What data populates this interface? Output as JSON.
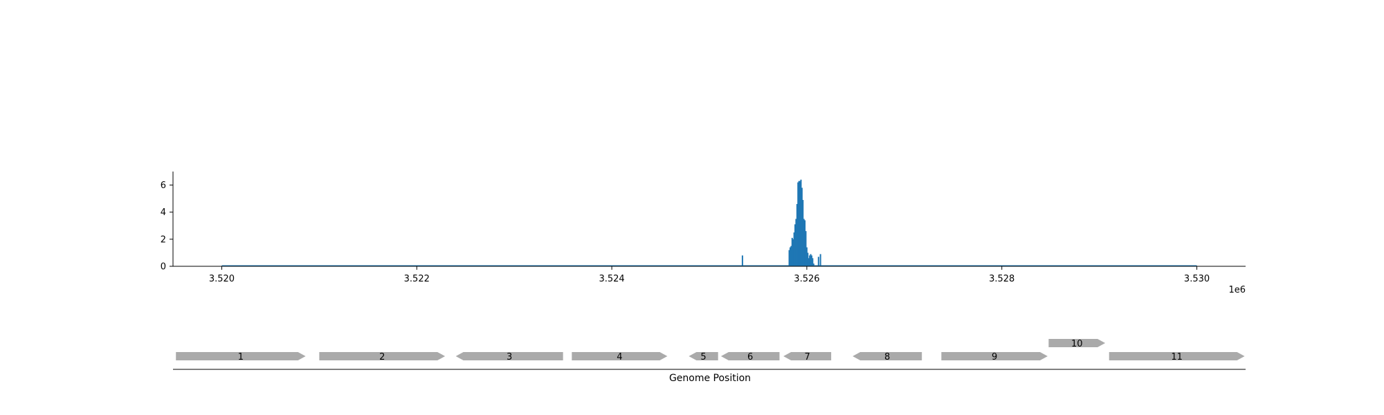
{
  "chart_data": [
    {
      "type": "bar",
      "title": "",
      "xlabel": "",
      "ylabel": "",
      "x_offset_label": "1e6",
      "xlim": [
        3519500,
        3530500
      ],
      "ylim": [
        0,
        7
      ],
      "x_ticks": [
        3520000,
        3522000,
        3524000,
        3526000,
        3528000,
        3530000
      ],
      "x_tick_labels": [
        "3.520",
        "3.522",
        "3.524",
        "3.526",
        "3.528",
        "3.530"
      ],
      "y_ticks": [
        0,
        2,
        4,
        6
      ],
      "y_tick_labels": [
        "0",
        "2",
        "4",
        "6"
      ],
      "color": "#1f77b4",
      "baseline_range": [
        3520000,
        3530000
      ],
      "grid": false,
      "series": [
        {
          "x": [
            3525340,
            3525820,
            3525830,
            3525840,
            3525850,
            3525860,
            3525870,
            3525880,
            3525890,
            3525900,
            3525910,
            3525920,
            3525930,
            3525940,
            3525950,
            3525960,
            3525970,
            3525980,
            3525990,
            3526000,
            3526010,
            3526020,
            3526030,
            3526040,
            3526050,
            3526060,
            3526070,
            3526120,
            3526140
          ],
          "values": [
            0.8,
            1.2,
            1.4,
            1.5,
            2.1,
            2.0,
            2.5,
            3.1,
            3.5,
            4.6,
            6.2,
            6.3,
            6.3,
            6.4,
            5.8,
            4.9,
            3.5,
            3.4,
            2.6,
            1.4,
            1.0,
            0.6,
            0.8,
            0.9,
            0.8,
            0.6,
            0.2,
            0.7,
            0.9
          ]
        }
      ]
    },
    {
      "type": "gene_track",
      "xlabel": "Genome Position",
      "color": "#aaaaaa",
      "genes": [
        {
          "label": "1",
          "start": 3519530,
          "end": 3520860,
          "strand": "+",
          "row": 0
        },
        {
          "label": "2",
          "start": 3521000,
          "end": 3522290,
          "strand": "+",
          "row": 0
        },
        {
          "label": "3",
          "start": 3522400,
          "end": 3523500,
          "strand": "-",
          "row": 0
        },
        {
          "label": "4",
          "start": 3523590,
          "end": 3524570,
          "strand": "+",
          "row": 0
        },
        {
          "label": "5",
          "start": 3524790,
          "end": 3525090,
          "strand": "-",
          "row": 0
        },
        {
          "label": "6",
          "start": 3525120,
          "end": 3525720,
          "strand": "-",
          "row": 0
        },
        {
          "label": "7",
          "start": 3525760,
          "end": 3526250,
          "strand": "-",
          "row": 0
        },
        {
          "label": "8",
          "start": 3526470,
          "end": 3527180,
          "strand": "-",
          "row": 0
        },
        {
          "label": "9",
          "start": 3527380,
          "end": 3528470,
          "strand": "+",
          "row": 0
        },
        {
          "label": "10",
          "start": 3528480,
          "end": 3529060,
          "strand": "+",
          "row": 1
        },
        {
          "label": "11",
          "start": 3529100,
          "end": 3530490,
          "strand": "+",
          "row": 0
        }
      ]
    }
  ]
}
